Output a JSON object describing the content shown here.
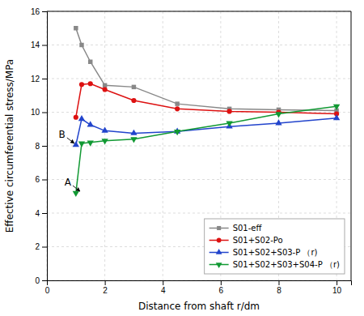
{
  "chart_data": {
    "type": "line",
    "x": [
      1.0,
      1.2,
      1.5,
      2.0,
      3.0,
      4.5,
      6.3,
      8.0,
      10.0
    ],
    "series": [
      {
        "name": "S01-eff",
        "color": "#888888",
        "marker": "square",
        "values": [
          15.0,
          14.0,
          13.0,
          11.6,
          11.5,
          10.5,
          10.2,
          10.15,
          10.1
        ]
      },
      {
        "name": "S01+S02-Po",
        "color": "#dd1111",
        "marker": "circle",
        "values": [
          9.7,
          11.65,
          11.7,
          11.35,
          10.7,
          10.2,
          10.05,
          10.0,
          9.9
        ]
      },
      {
        "name": "S01+S02+S03-P （r)",
        "color": "#2244cc",
        "marker": "triangle-up",
        "values": [
          8.05,
          9.6,
          9.25,
          8.9,
          8.75,
          8.85,
          9.15,
          9.35,
          9.65
        ]
      },
      {
        "name": "S01+S02+S03+S04-P （r)",
        "color": "#119933",
        "marker": "triangle-down",
        "values": [
          5.2,
          8.15,
          8.2,
          8.3,
          8.4,
          8.85,
          9.35,
          9.9,
          10.35
        ]
      }
    ],
    "xlabel": "Distance from shaft r/dm",
    "ylabel": "Effective circumferential stress/MPa",
    "xlim": [
      0,
      10.5
    ],
    "ylim": [
      0,
      16
    ],
    "xticks": [
      0,
      2,
      4,
      6,
      8,
      10
    ],
    "yticks": [
      0,
      2,
      4,
      6,
      8,
      10,
      12,
      14,
      16
    ],
    "grid": true,
    "legend": "lower right",
    "annotations": [
      {
        "text": "B",
        "x": 1.0,
        "y": 8.05
      },
      {
        "text": "A",
        "x": 1.2,
        "y": 5.2
      }
    ]
  }
}
